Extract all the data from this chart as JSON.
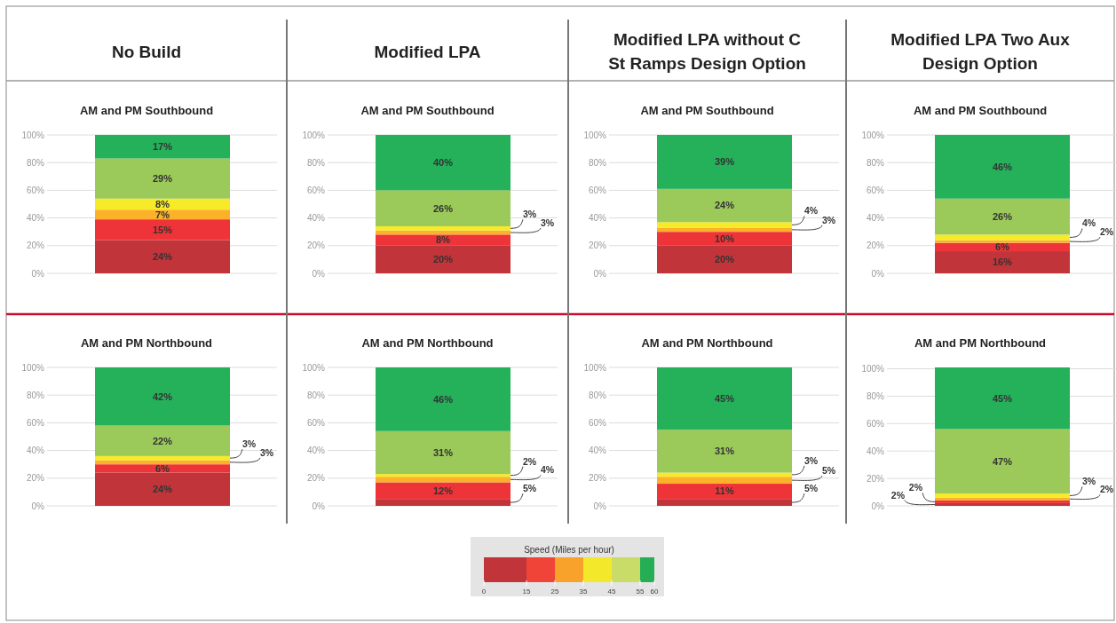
{
  "chart_data": [
    {
      "type": "bar",
      "stacked": true,
      "title": "No Build",
      "subtitle": "AM and PM Southbound",
      "categories": [
        null
      ],
      "ylim": [
        0,
        100
      ],
      "yticks": [
        {
          "value": 0,
          "label": "0%"
        },
        {
          "value": 20,
          "label": "20%"
        },
        {
          "value": 40,
          "label": "40%"
        },
        {
          "value": 60,
          "label": "60%"
        },
        {
          "value": 80,
          "label": "80%"
        },
        {
          "value": 100,
          "label": "100%"
        }
      ],
      "grid": "y",
      "tick_labels": "y",
      "series": [
        {
          "color": "#c1353a",
          "values": [
            24
          ],
          "value_labels": [
            "24%"
          ]
        },
        {
          "color": "#ee3438",
          "values": [
            15
          ],
          "value_labels": [
            "15%"
          ]
        },
        {
          "color": "#fbb12a",
          "values": [
            7
          ],
          "value_labels": [
            "7%"
          ]
        },
        {
          "color": "#f6ea29",
          "values": [
            8
          ],
          "value_labels": [
            "8%"
          ]
        },
        {
          "color": "#9bc95a",
          "values": [
            29
          ],
          "value_labels": [
            "29%"
          ]
        },
        {
          "color": "#24b15a",
          "values": [
            17
          ],
          "value_labels": [
            "17%"
          ]
        }
      ]
    },
    {
      "type": "bar",
      "stacked": true,
      "title": "Modified LPA",
      "subtitle": "AM and PM Southbound",
      "categories": [
        null
      ],
      "ylim": [
        0,
        100
      ],
      "yticks": [
        {
          "value": 0,
          "label": "0%"
        },
        {
          "value": 20,
          "label": "20%"
        },
        {
          "value": 40,
          "label": "40%"
        },
        {
          "value": 60,
          "label": "60%"
        },
        {
          "value": 80,
          "label": "80%"
        },
        {
          "value": 100,
          "label": "100%"
        }
      ],
      "grid": "y",
      "tick_labels": "y",
      "series": [
        {
          "color": "#c1353a",
          "values": [
            20
          ],
          "value_labels": [
            "20%"
          ]
        },
        {
          "color": "#ee3438",
          "values": [
            8
          ],
          "value_labels": [
            "8%"
          ]
        },
        {
          "color": "#fbb12a",
          "values": [
            3
          ],
          "value_labels": [
            "3%"
          ]
        },
        {
          "color": "#f6ea29",
          "values": [
            3
          ],
          "value_labels": [
            "3%"
          ]
        },
        {
          "color": "#9bc95a",
          "values": [
            26
          ],
          "value_labels": [
            "26%"
          ]
        },
        {
          "color": "#24b15a",
          "values": [
            40
          ],
          "value_labels": [
            "40%"
          ]
        }
      ]
    },
    {
      "type": "bar",
      "stacked": true,
      "title": "Modified LPA without C St Ramps Design Option",
      "subtitle": "AM and PM Southbound",
      "categories": [
        null
      ],
      "ylim": [
        0,
        100
      ],
      "yticks": [
        {
          "value": 0,
          "label": "0%"
        },
        {
          "value": 20,
          "label": "20%"
        },
        {
          "value": 40,
          "label": "40%"
        },
        {
          "value": 60,
          "label": "60%"
        },
        {
          "value": 80,
          "label": "80%"
        },
        {
          "value": 100,
          "label": "100%"
        }
      ],
      "grid": "y",
      "tick_labels": "y",
      "series": [
        {
          "color": "#c1353a",
          "values": [
            20
          ],
          "value_labels": [
            "20%"
          ]
        },
        {
          "color": "#ee3438",
          "values": [
            10
          ],
          "value_labels": [
            "10%"
          ]
        },
        {
          "color": "#fbb12a",
          "values": [
            3
          ],
          "value_labels": [
            "3%"
          ]
        },
        {
          "color": "#f6ea29",
          "values": [
            4
          ],
          "value_labels": [
            "4%"
          ]
        },
        {
          "color": "#9bc95a",
          "values": [
            24
          ],
          "value_labels": [
            "24%"
          ]
        },
        {
          "color": "#24b15a",
          "values": [
            39
          ],
          "value_labels": [
            "39%"
          ]
        }
      ]
    },
    {
      "type": "bar",
      "stacked": true,
      "title": "Modified LPA Two Aux Design Option",
      "subtitle": "AM and PM Southbound",
      "categories": [
        null
      ],
      "ylim": [
        0,
        100
      ],
      "yticks": [
        {
          "value": 0,
          "label": "0%"
        },
        {
          "value": 20,
          "label": "20%"
        },
        {
          "value": 40,
          "label": "40%"
        },
        {
          "value": 60,
          "label": "60%"
        },
        {
          "value": 80,
          "label": "80%"
        },
        {
          "value": 100,
          "label": "100%"
        }
      ],
      "grid": "y",
      "tick_labels": "y",
      "series": [
        {
          "color": "#c1353a",
          "values": [
            16
          ],
          "value_labels": [
            "16%"
          ]
        },
        {
          "color": "#ee3438",
          "values": [
            6
          ],
          "value_labels": [
            "6%"
          ]
        },
        {
          "color": "#fbb12a",
          "values": [
            2
          ],
          "value_labels": [
            "2%"
          ]
        },
        {
          "color": "#f6ea29",
          "values": [
            4
          ],
          "value_labels": [
            "4%"
          ]
        },
        {
          "color": "#9bc95a",
          "values": [
            26
          ],
          "value_labels": [
            "26%"
          ]
        },
        {
          "color": "#24b15a",
          "values": [
            46
          ],
          "value_labels": [
            "46%"
          ]
        }
      ]
    },
    {
      "type": "bar",
      "stacked": true,
      "title": "AM and PM Northbound",
      "categories": [
        null
      ],
      "ylim": [
        0,
        100
      ],
      "yticks": [
        {
          "value": 0,
          "label": "0%"
        },
        {
          "value": 20,
          "label": "20%"
        },
        {
          "value": 40,
          "label": "40%"
        },
        {
          "value": 60,
          "label": "60%"
        },
        {
          "value": 80,
          "label": "80%"
        },
        {
          "value": 100,
          "label": "100%"
        }
      ],
      "grid": "y",
      "tick_labels": "y",
      "series": [
        {
          "color": "#c1353a",
          "values": [
            24
          ],
          "value_labels": [
            "24%"
          ]
        },
        {
          "color": "#ee3438",
          "values": [
            6
          ],
          "value_labels": [
            "6%"
          ]
        },
        {
          "color": "#fbb12a",
          "values": [
            3
          ],
          "value_labels": [
            "3%"
          ]
        },
        {
          "color": "#f6ea29",
          "values": [
            3
          ],
          "value_labels": [
            "3%"
          ]
        },
        {
          "color": "#9bc95a",
          "values": [
            22
          ],
          "value_labels": [
            "22%"
          ]
        },
        {
          "color": "#24b15a",
          "values": [
            42
          ],
          "value_labels": [
            "42%"
          ]
        }
      ]
    },
    {
      "type": "bar",
      "stacked": true,
      "title": "AM and PM Northbound",
      "categories": [
        null
      ],
      "ylim": [
        0,
        100
      ],
      "yticks": [
        {
          "value": 0,
          "label": "0%"
        },
        {
          "value": 20,
          "label": "20%"
        },
        {
          "value": 40,
          "label": "40%"
        },
        {
          "value": 60,
          "label": "60%"
        },
        {
          "value": 80,
          "label": "80%"
        },
        {
          "value": 100,
          "label": "100%"
        }
      ],
      "grid": "y",
      "tick_labels": "y",
      "series": [
        {
          "color": "#c1353a",
          "values": [
            5
          ],
          "value_labels": [
            "5%"
          ]
        },
        {
          "color": "#ee3438",
          "values": [
            12
          ],
          "value_labels": [
            "12%"
          ]
        },
        {
          "color": "#fbb12a",
          "values": [
            4
          ],
          "value_labels": [
            "4%"
          ]
        },
        {
          "color": "#f6ea29",
          "values": [
            2
          ],
          "value_labels": [
            "2%"
          ]
        },
        {
          "color": "#9bc95a",
          "values": [
            31
          ],
          "value_labels": [
            "31%"
          ]
        },
        {
          "color": "#24b15a",
          "values": [
            46
          ],
          "value_labels": [
            "46%"
          ]
        }
      ]
    },
    {
      "type": "bar",
      "stacked": true,
      "title": "AM and PM Northbound",
      "categories": [
        null
      ],
      "ylim": [
        0,
        100
      ],
      "yticks": [
        {
          "value": 0,
          "label": "0%"
        },
        {
          "value": 20,
          "label": "20%"
        },
        {
          "value": 40,
          "label": "40%"
        },
        {
          "value": 60,
          "label": "60%"
        },
        {
          "value": 80,
          "label": "80%"
        },
        {
          "value": 100,
          "label": "100%"
        }
      ],
      "grid": "y",
      "tick_labels": "y",
      "series": [
        {
          "color": "#c1353a",
          "values": [
            5
          ],
          "value_labels": [
            "5%"
          ]
        },
        {
          "color": "#ee3438",
          "values": [
            11
          ],
          "value_labels": [
            "11%"
          ]
        },
        {
          "color": "#fbb12a",
          "values": [
            5
          ],
          "value_labels": [
            "5%"
          ]
        },
        {
          "color": "#f6ea29",
          "values": [
            3
          ],
          "value_labels": [
            "3%"
          ]
        },
        {
          "color": "#9bc95a",
          "values": [
            31
          ],
          "value_labels": [
            "31%"
          ]
        },
        {
          "color": "#24b15a",
          "values": [
            45
          ],
          "value_labels": [
            "45%"
          ]
        }
      ]
    },
    {
      "type": "bar",
      "stacked": true,
      "title": "AM and PM Northbound",
      "categories": [
        null
      ],
      "ylim": [
        0,
        101
      ],
      "yticks": [
        {
          "value": 0,
          "label": "0%"
        },
        {
          "value": 20,
          "label": "20%"
        },
        {
          "value": 40,
          "label": "40%"
        },
        {
          "value": 60,
          "label": "60%"
        },
        {
          "value": 80,
          "label": "80%"
        },
        {
          "value": 100,
          "label": "100%"
        }
      ],
      "grid": "y",
      "tick_labels": "y",
      "series": [
        {
          "color": "#c1353a",
          "values": [
            2
          ],
          "value_labels": [
            "2%"
          ]
        },
        {
          "color": "#ee3438",
          "values": [
            2
          ],
          "value_labels": [
            "2%"
          ]
        },
        {
          "color": "#fbb12a",
          "values": [
            2
          ],
          "value_labels": [
            "2%"
          ]
        },
        {
          "color": "#f6ea29",
          "values": [
            3
          ],
          "value_labels": [
            "3%"
          ]
        },
        {
          "color": "#9bc95a",
          "values": [
            47
          ],
          "value_labels": [
            "47%"
          ]
        },
        {
          "color": "#24b15a",
          "values": [
            45
          ],
          "value_labels": [
            "45%"
          ]
        }
      ]
    },
    {
      "type": "bar",
      "stacked": true,
      "orientation": "horizontal",
      "title": "Speed (Miles per hour)",
      "categories": [
        null
      ],
      "xlim": [
        0,
        60
      ],
      "xticks": [
        0,
        15,
        25,
        35,
        45,
        55,
        60
      ],
      "tick_labels": "x",
      "series": [
        {
          "color": "#c1353a",
          "values": [
            15
          ]
        },
        {
          "color": "#ef4437",
          "values": [
            10
          ]
        },
        {
          "color": "#f8a22c",
          "values": [
            10
          ]
        },
        {
          "color": "#f4e82b",
          "values": [
            10
          ]
        },
        {
          "color": "#c9dc68",
          "values": [
            10
          ]
        },
        {
          "color": "#26ae55",
          "values": [
            5
          ]
        }
      ]
    }
  ]
}
